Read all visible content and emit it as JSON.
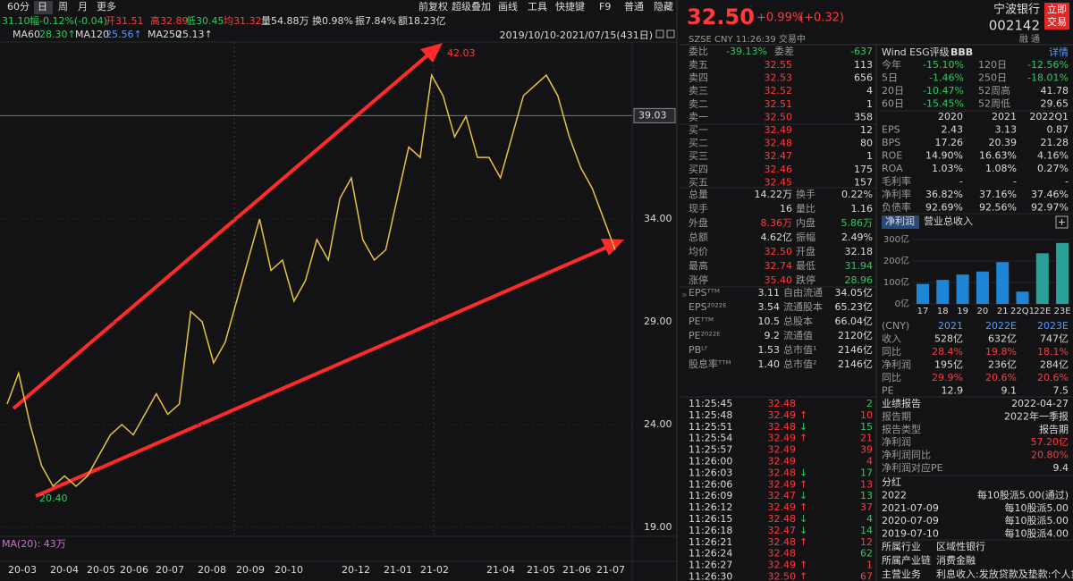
{
  "left": {
    "periods": [
      "60分",
      "日",
      "周",
      "月",
      "更多"
    ],
    "tools": [
      "前复权",
      "超级叠加",
      "画线",
      "工具",
      "快捷键",
      "F9",
      "普通",
      "隐藏"
    ],
    "quote": [
      {
        "text": "31.10",
        "color": "g"
      },
      {
        "text": "幅-0.12%(-0.04)",
        "color": "g"
      },
      {
        "text": "开31.51",
        "color": "r"
      },
      {
        "text": "高32.89",
        "color": "r"
      },
      {
        "text": "低30.45",
        "color": "g"
      },
      {
        "text": "均31.32",
        "color": "r"
      },
      {
        "text": "量54.88万",
        "color": "w"
      },
      {
        "text": "换0.98%",
        "color": "w"
      },
      {
        "text": "振7.84%",
        "color": "w"
      },
      {
        "text": "额18.23亿",
        "color": "w"
      }
    ],
    "ma": [
      {
        "text": "MA60",
        "color": "w"
      },
      {
        "text": "28.30↑",
        "color": "g"
      },
      {
        "text": "MA120",
        "color": "w"
      },
      {
        "text": "25.56↑",
        "color": "b"
      },
      {
        "text": "MA250",
        "color": "w"
      },
      {
        "text": "25.13↑",
        "color": "w"
      }
    ],
    "range": "2019/10/10-2021/07/15(431日)",
    "price_axis": {
      "ylim": [
        18.65,
        42.57
      ],
      "yticks": [
        {
          "value": 34,
          "label": "34.00"
        },
        {
          "value": 29,
          "label": "29.00"
        },
        {
          "value": 24,
          "label": "24.00"
        },
        {
          "value": 19,
          "label": "19.00"
        }
      ],
      "crosshair": 39.03
    },
    "closes": [
      25,
      26.5,
      24,
      22,
      21,
      21.5,
      21,
      21.5,
      22.5,
      23.5,
      24,
      23.5,
      24.5,
      25.5,
      24.5,
      25,
      29.5,
      29,
      27,
      28,
      30,
      32,
      34,
      31.5,
      32,
      30,
      31,
      33,
      32,
      35,
      36,
      33,
      32,
      32.5,
      35,
      37.5,
      37,
      41,
      40,
      38,
      39,
      37,
      37,
      36,
      38,
      40,
      40.5,
      41,
      40,
      38,
      36.5,
      35.5,
      34,
      32.5
    ],
    "high_label": "42.03",
    "low_label": "20.40",
    "volume_label": "MA(20): 43万",
    "months": [
      "20-03",
      "20-04",
      "20-05",
      "20-06",
      "20-07",
      "20-08",
      "20-09",
      "20-10",
      "20-12",
      "21-01",
      "21-02",
      "21-04",
      "21-05",
      "21-06",
      "21-07"
    ]
  },
  "quote_header": {
    "price": "32.50",
    "change_pct": "+0.99%",
    "change": "(+0.32)",
    "name": "宁波银行",
    "code": "002142",
    "market": "SZSE  CNY  11:26:39  交易中",
    "tags": "融  通",
    "trade_button": "立即交易"
  },
  "commission": {
    "rows": [
      [
        "委比",
        "-39.13%",
        "委差",
        "-637"
      ]
    ],
    "colors": [
      "dgdg"
    ]
  },
  "orderbook": {
    "rows": [
      [
        "卖五",
        "32.55",
        "113"
      ],
      [
        "卖四",
        "32.53",
        "656"
      ],
      [
        "卖三",
        "32.52",
        "4"
      ],
      [
        "卖二",
        "32.51",
        "1"
      ],
      [
        "卖一",
        "32.50",
        "358"
      ],
      [
        "买一",
        "32.49",
        "12"
      ],
      [
        "买二",
        "32.48",
        "80"
      ],
      [
        "买三",
        "32.47",
        "1"
      ],
      [
        "买四",
        "32.46",
        "175"
      ],
      [
        "买五",
        "32.45",
        "157"
      ]
    ],
    "colors": [
      "drw",
      "drw",
      "drw",
      "drw",
      "drw",
      "drw",
      "drw",
      "drw",
      "drw",
      "drw"
    ]
  },
  "stats": {
    "rows": [
      [
        "总量",
        "14.22万",
        "换手",
        "0.22%"
      ],
      [
        "现手",
        "16",
        "量比",
        "1.16"
      ],
      [
        "外盘",
        "8.36万",
        "内盘",
        "5.86万"
      ],
      [
        "总额",
        "4.62亿",
        "振幅",
        "2.49%"
      ],
      [
        "均价",
        "32.50",
        "开盘",
        "32.18"
      ],
      [
        "最高",
        "32.74",
        "最低",
        "31.94"
      ],
      [
        "涨停",
        "35.40",
        "跌停",
        "28.96"
      ]
    ],
    "colors": [
      "dwdw",
      "dwdw",
      "drdg",
      "dwdw",
      "drdw",
      "drdg",
      "drdg"
    ]
  },
  "valuation": {
    "rows": [
      [
        "EPSᵀᵀᴹ",
        "3.11",
        "自由流通",
        "34.05亿"
      ],
      [
        "EPS²⁰²²ᴱ",
        "3.54",
        "流通股本",
        "65.23亿"
      ],
      [
        "PEᵀᵀᴹ",
        "10.5",
        "总股本",
        "66.04亿"
      ],
      [
        "PE²⁰²²ᴱ",
        "9.2",
        "流通值",
        "2120亿"
      ],
      [
        "PBᴸᶠ",
        "1.53",
        "总市值¹",
        "2146亿"
      ],
      [
        "股息率ᵀᵀᴹ",
        "1.40",
        "总市值²",
        "2146亿"
      ]
    ],
    "colors": [
      "dwdw",
      "dwdw",
      "dwdw",
      "dwdw",
      "dwdw",
      "dwdw"
    ]
  },
  "trades": {
    "rows": [
      [
        "11:25:45",
        "32.48",
        "2"
      ],
      [
        "11:25:48",
        "32.49",
        "↑",
        "10"
      ],
      [
        "11:25:51",
        "32.48",
        "↓",
        "15"
      ],
      [
        "11:25:54",
        "32.49",
        "↑",
        "21"
      ],
      [
        "11:25:57",
        "32.49",
        "39"
      ],
      [
        "11:26:00",
        "32.49",
        "4"
      ],
      [
        "11:26:03",
        "32.48",
        "↓",
        "17"
      ],
      [
        "11:26:06",
        "32.49",
        "↑",
        "13"
      ],
      [
        "11:26:09",
        "32.47",
        "↓",
        "13"
      ],
      [
        "11:26:12",
        "32.49",
        "↑",
        "37"
      ],
      [
        "11:26:15",
        "32.48",
        "↓",
        "4"
      ],
      [
        "11:26:18",
        "32.47",
        "↓",
        "14"
      ],
      [
        "11:26:21",
        "32.48",
        "↑",
        "12"
      ],
      [
        "11:26:24",
        "32.48",
        "62"
      ],
      [
        "11:26:27",
        "32.49",
        "↑",
        "1"
      ],
      [
        "11:26:30",
        "32.50",
        "↑",
        "67"
      ]
    ],
    "colors": [
      "wrg",
      "wrrr",
      "wrgg",
      "wrrr",
      "wrr",
      "wrr",
      "wrgg",
      "wrrr",
      "wrgg",
      "wrrr",
      "wrgg",
      "wrgg",
      "wrrr",
      "wrg",
      "wrrr",
      "wrrr"
    ]
  },
  "esg": {
    "label": "Wind ESG评级",
    "rating": "BBB",
    "detail": "详情"
  },
  "returns": {
    "rows": [
      [
        "今年",
        "-15.10%",
        "120日",
        "-12.56%"
      ],
      [
        "5日",
        "-1.46%",
        "250日",
        "-18.01%"
      ],
      [
        "20日",
        "-10.47%",
        "52周高",
        "41.78"
      ],
      [
        "60日",
        "-15.45%",
        "52周低",
        "29.65"
      ]
    ],
    "colors": [
      "dgdg",
      "dgdg",
      "dgdw",
      "dgdw"
    ]
  },
  "financials": {
    "rows": [
      [
        "2020",
        "2021",
        "2022Q1"
      ],
      [
        "EPS",
        "2.43",
        "3.13",
        "0.87"
      ],
      [
        "BPS",
        "17.26",
        "20.39",
        "21.28"
      ],
      [
        "ROE",
        "14.90%",
        "16.63%",
        "4.16%"
      ],
      [
        "ROA",
        "1.03%",
        "1.08%",
        "0.27%"
      ],
      [
        "毛利率",
        "-",
        "-",
        "-"
      ],
      [
        "净利率",
        "36.82%",
        "37.16%",
        "37.46%"
      ],
      [
        "负债率",
        "92.69%",
        "92.56%",
        "92.97%"
      ]
    ],
    "colors": [
      "www",
      "dwww",
      "dwww",
      "dwww",
      "dwww",
      "dwww",
      "dwww",
      "dwww"
    ]
  },
  "tabs": [
    "净利润",
    "营业总收入"
  ],
  "profit_chart": {
    "categories": [
      "17",
      "18",
      "19",
      "20",
      "21",
      "22Q1",
      "22E",
      "23E"
    ],
    "values": [
      93,
      112,
      137,
      151,
      195,
      57.2,
      236,
      284
    ],
    "colors": [
      "#1f86d6",
      "#1f86d6",
      "#1f86d6",
      "#1f86d6",
      "#1f86d6",
      "#1f86d6",
      "#2aa198",
      "#2aa198"
    ],
    "ylim": [
      0,
      300
    ],
    "yticks": [
      {
        "value": 300,
        "label": "300亿"
      },
      {
        "value": 200,
        "label": "200亿"
      },
      {
        "value": 100,
        "label": "100亿"
      },
      {
        "value": 0,
        "label": "0亿"
      }
    ]
  },
  "forecast": {
    "rows": [
      [
        "(CNY)",
        "2021",
        "2022E",
        "2023E"
      ],
      [
        "收入",
        "528亿",
        "632亿",
        "747亿"
      ],
      [
        "同比",
        "28.4%",
        "19.8%",
        "18.1%"
      ],
      [
        "净利润",
        "195亿",
        "236亿",
        "284亿"
      ],
      [
        "同比",
        "29.9%",
        "20.6%",
        "20.6%"
      ],
      [
        "PE",
        "12.9",
        "9.1",
        "7.5"
      ]
    ],
    "colors": [
      "dbbb",
      "dwww",
      "drrr",
      "dwww",
      "drrr",
      "dwww"
    ]
  },
  "report": {
    "rows": [
      [
        "业绩报告",
        "2022-04-27"
      ],
      [
        "报告期",
        "2022年一季报"
      ],
      [
        "报告类型",
        "报告期"
      ],
      [
        "净利润",
        "57.20亿"
      ],
      [
        "净利润同比",
        "20.80%"
      ],
      [
        "净利润对应PE",
        "9.4"
      ]
    ],
    "colors": [
      "ww",
      "dw",
      "dw",
      "dr",
      "dr",
      "dw"
    ]
  },
  "dividend": {
    "rows": [
      [
        "分红"
      ],
      [
        "2022",
        "每10股派5.00(通过)"
      ],
      [
        "2021-07-09",
        "每10股派5.00"
      ],
      [
        "2020-07-09",
        "每10股派5.00"
      ],
      [
        "2019-07-10",
        "每10股派4.00"
      ]
    ],
    "colors": [
      "w",
      "ww",
      "ww",
      "ww",
      "ww"
    ]
  },
  "profile": {
    "rows": [
      [
        "所属行业",
        "区域性银行"
      ],
      [
        "所属产业链",
        "消费金融"
      ],
      [
        "主营业务",
        "利息收入:发放贷款及垫款:个人贷"
      ]
    ],
    "colors": [
      "ww",
      "ww",
      "ww"
    ]
  }
}
